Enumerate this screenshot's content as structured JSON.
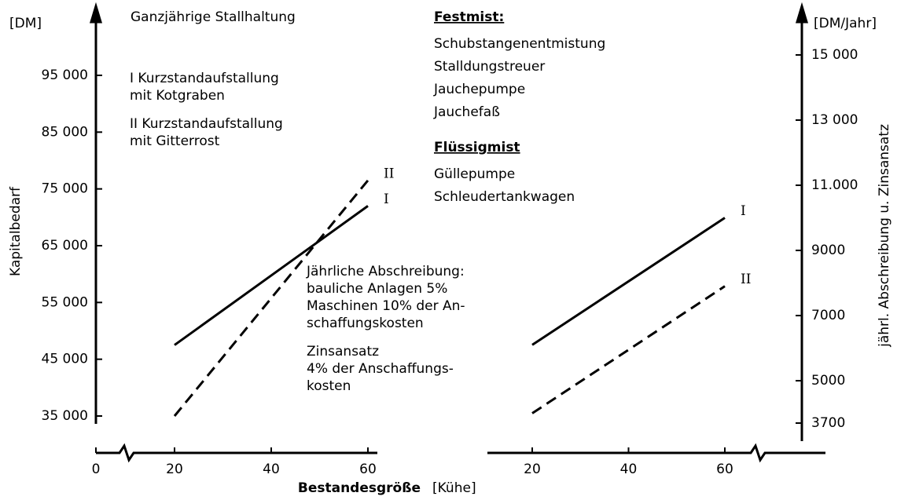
{
  "chart_data": [
    {
      "type": "line",
      "title": "Ganzjährige Stallhaltung",
      "ylabel": "Kapitalbedarf",
      "yunit": "[DM]",
      "xlabel": "Bestandesgröße",
      "xunit": "[Kühe]",
      "legend": [
        [
          "I Kurzstandaufstallung",
          "mit Kotgraben"
        ],
        [
          "II Kurzstandaufstallung",
          "mit Gitterrost"
        ]
      ],
      "annotation": [
        "Jährliche Abschreibung:",
        "bauliche Anlagen 5%",
        "Maschinen 10% der An-",
        "schaffungskosten"
      ],
      "annotation2": [
        "Zinsansatz",
        "4% der Anschaffungs-",
        "kosten"
      ],
      "x": [
        20,
        60
      ],
      "series": [
        {
          "name": "I",
          "color": "#000000",
          "dash": false,
          "values": [
            47500,
            72000
          ]
        },
        {
          "name": "II",
          "color": "#000000",
          "dash": true,
          "values": [
            35000,
            76500
          ]
        }
      ],
      "xlim": [
        20,
        60
      ],
      "xticks": [
        0,
        20,
        40,
        60
      ],
      "ylim": [
        35000,
        95000
      ],
      "yticks": [
        {
          "value": 35000,
          "label": "35 000"
        },
        {
          "value": 45000,
          "label": "45 000"
        },
        {
          "value": 55000,
          "label": "55 000"
        },
        {
          "value": 65000,
          "label": "65 000"
        },
        {
          "value": 75000,
          "label": "75 000"
        },
        {
          "value": 85000,
          "label": "85 000"
        },
        {
          "value": 95000,
          "label": "95 000"
        }
      ]
    },
    {
      "type": "line",
      "ylabel": "jährl. Abschreibung u. Zinsansatz",
      "yunit": "[DM/Jahr]",
      "festmist": "Festmist:",
      "festmist_items": [
        "Schubstangenentmistung",
        "Stalldungstreuer",
        "Jauchepumpe",
        "Jauchefaß"
      ],
      "fluessigmist": "Flüssigmist",
      "fluessigmist_items": [
        "Güllepumpe",
        "Schleudertankwagen"
      ],
      "x": [
        20,
        60
      ],
      "series": [
        {
          "name": "I",
          "color": "#000000",
          "dash": false,
          "values": [
            6100,
            10000
          ]
        },
        {
          "name": "II",
          "color": "#000000",
          "dash": true,
          "values": [
            4000,
            7900
          ]
        }
      ],
      "xlim": [
        20,
        60
      ],
      "xticks": [
        20,
        40,
        60
      ],
      "ylim": [
        3700,
        15000
      ],
      "yticks": [
        3700,
        5000,
        7000,
        9000,
        {
          "value": 11000,
          "label": "11.000"
        },
        {
          "value": 13000,
          "label": "13 000"
        },
        {
          "value": 15000,
          "label": "15 000"
        }
      ]
    }
  ]
}
